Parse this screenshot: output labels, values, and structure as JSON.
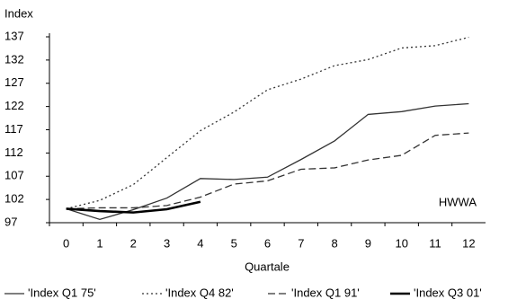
{
  "chart_data": {
    "type": "line",
    "y_label": "Index",
    "x_label": "Quartale",
    "annotation": "HWWA",
    "categories": [
      "0",
      "1",
      "2",
      "3",
      "4",
      "5",
      "6",
      "7",
      "8",
      "9",
      "10",
      "11",
      "12"
    ],
    "ylim": [
      97,
      137
    ],
    "yticks": [
      97,
      102,
      107,
      112,
      117,
      122,
      127,
      132,
      137
    ],
    "series": [
      {
        "name": "'Index Q1 75'",
        "color": "#333333",
        "dash": "solid",
        "width": 1.3,
        "values": [
          100,
          97.7,
          99.8,
          102.3,
          106.5,
          106.3,
          106.8,
          110.6,
          114.6,
          120.3,
          120.9,
          122.1,
          122.6
        ]
      },
      {
        "name": "'Index Q4 82'",
        "color": "#333333",
        "dash": "dotted",
        "width": 1.3,
        "values": [
          100,
          101.8,
          105.2,
          111,
          116.8,
          120.8,
          125.6,
          127.9,
          130.8,
          132.1,
          134.6,
          135.1,
          136.9
        ]
      },
      {
        "name": "'Index Q1 91'",
        "color": "#333333",
        "dash": "dashed",
        "width": 1.3,
        "values": [
          100,
          100.2,
          100.2,
          100.7,
          102.5,
          105.3,
          106,
          108.5,
          108.8,
          110.5,
          111.5,
          115.8,
          116.3
        ]
      },
      {
        "name": "'Index Q3 01'",
        "color": "#000000",
        "dash": "solid",
        "width": 2.6,
        "values": [
          100,
          99.5,
          99.2,
          99.9,
          101.5,
          null,
          null,
          null,
          null,
          null,
          null,
          null,
          null
        ]
      }
    ]
  }
}
